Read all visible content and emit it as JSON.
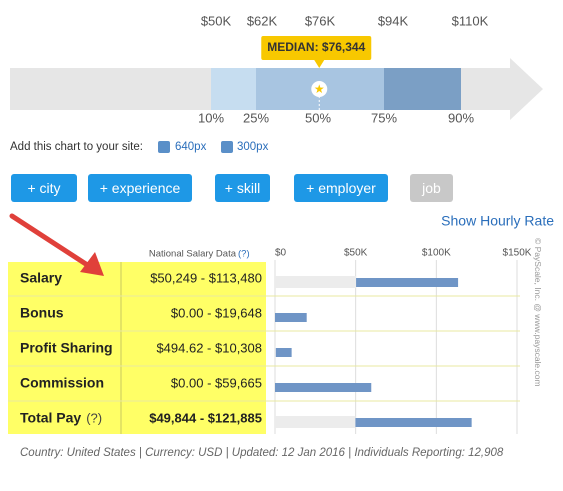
{
  "chart_data": [
    {
      "type": "percentile",
      "categories": [
        "10%",
        "25%",
        "50%",
        "75%",
        "90%"
      ],
      "values": [
        50000,
        62000,
        76000,
        94000,
        110000
      ],
      "value_labels": [
        "$50K",
        "$62K",
        "$76K",
        "$94K",
        "$110K"
      ],
      "median": {
        "value": 76344,
        "label": "MEDIAN: $76,344"
      },
      "colors": [
        "#c6ddf0",
        "#a8c5e1",
        "#7b9fc5"
      ]
    },
    {
      "type": "range_bar",
      "header": "National Salary Data",
      "header_help": "(?)",
      "categories": [
        "Salary",
        "Bonus",
        "Profit Sharing",
        "Commission",
        "Total Pay"
      ],
      "category_help": [
        null,
        null,
        null,
        null,
        "(?)"
      ],
      "ranges": [
        [
          50249,
          113480
        ],
        [
          0,
          19648
        ],
        [
          494.62,
          10308
        ],
        [
          0,
          59665
        ],
        [
          49844,
          121885
        ]
      ],
      "value_labels": [
        "$50,249 - $113,480",
        "$0.00 - $19,648",
        "$494.62 - $10,308",
        "$0.00 - $59,665",
        "$49,844 - $121,885"
      ],
      "xlim": [
        0,
        150000
      ],
      "xticks": [
        {
          "value": 0,
          "label": "$0"
        },
        {
          "value": 50000,
          "label": "$50K"
        },
        {
          "value": 100000,
          "label": "$100K"
        },
        {
          "value": 150000,
          "label": "$150K"
        }
      ],
      "color": "#6f95c6",
      "background_color": "#ececec",
      "grid": true
    }
  ],
  "embed": {
    "label": "Add this chart to your site:",
    "links": [
      "640px",
      "300px"
    ]
  },
  "buttons": [
    "+ city",
    "+ experience",
    "+ skill",
    "+ employer",
    "job"
  ],
  "hourly_link": "Show Hourly Rate",
  "footer": "Country: United States | Currency: USD | Updated: 12 Jan 2016 | Individuals Reporting: 12,908",
  "watermark": "© PayScale, Inc. @ www.payscale.com"
}
